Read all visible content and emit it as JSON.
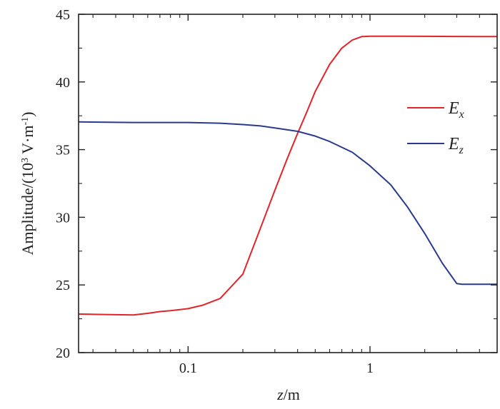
{
  "chart_data": {
    "type": "line",
    "x_scale": "log",
    "xlim": [
      0.025,
      5
    ],
    "ylim": [
      20,
      45
    ],
    "x_ticks": [
      0.1,
      1
    ],
    "x_tick_labels": [
      "0.1",
      "1"
    ],
    "y_ticks": [
      20,
      25,
      30,
      35,
      40,
      45
    ],
    "y_tick_labels": [
      "20",
      "25",
      "30",
      "35",
      "40",
      "45"
    ],
    "xlabel": {
      "var": "z",
      "unit": "/m"
    },
    "ylabel": {
      "prefix": "Amplitude/(10",
      "sup1": "3",
      "mid": " V·m",
      "sup2": "-1",
      "suffix": ")"
    },
    "grid": false,
    "legend_position": "right",
    "series": [
      {
        "name": "E",
        "sub": "x",
        "color": "#e0242a",
        "x": [
          0.025,
          0.03,
          0.04,
          0.05,
          0.06,
          0.07,
          0.08,
          0.1,
          0.12,
          0.15,
          0.2,
          0.25,
          0.3,
          0.35,
          0.4,
          0.45,
          0.5,
          0.6,
          0.7,
          0.8,
          0.9,
          1.0,
          1.5,
          2,
          3,
          4,
          5
        ],
        "y": [
          22.85,
          22.83,
          22.8,
          22.78,
          22.9,
          23.03,
          23.1,
          23.25,
          23.5,
          24.0,
          25.8,
          29.2,
          32.0,
          34.3,
          36.2,
          37.8,
          39.3,
          41.3,
          42.5,
          43.1,
          43.35,
          43.38,
          43.38,
          43.37,
          43.36,
          43.35,
          43.35
        ]
      },
      {
        "name": "E",
        "sub": "z",
        "color": "#2b3a8e",
        "x": [
          0.025,
          0.05,
          0.1,
          0.15,
          0.2,
          0.25,
          0.3,
          0.4,
          0.5,
          0.6,
          0.8,
          1.0,
          1.3,
          1.6,
          2.0,
          2.5,
          3.0,
          3.2,
          4,
          5
        ],
        "y": [
          37.05,
          37.0,
          37.0,
          36.95,
          36.85,
          36.75,
          36.6,
          36.35,
          36.0,
          35.6,
          34.8,
          33.8,
          32.4,
          30.8,
          28.8,
          26.6,
          25.1,
          25.05,
          25.05,
          25.05
        ]
      }
    ]
  }
}
